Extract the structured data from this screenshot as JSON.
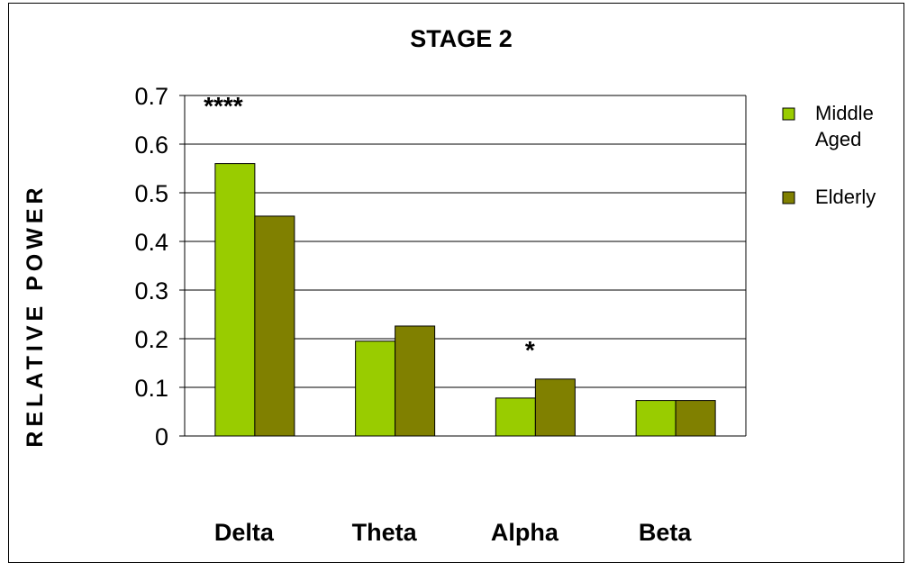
{
  "chart_data": {
    "type": "bar",
    "title": "STAGE 2",
    "xlabel": "",
    "ylabel": "RELATIVE POWER",
    "categories": [
      "Delta",
      "Theta",
      "Alpha",
      "Beta"
    ],
    "series": [
      {
        "name": "Middle Aged",
        "values": [
          0.56,
          0.195,
          0.078,
          0.073
        ],
        "color": "#99cc00"
      },
      {
        "name": "Elderly",
        "values": [
          0.452,
          0.226,
          0.117,
          0.073
        ],
        "color": "#808000"
      }
    ],
    "ylim": [
      0,
      0.7
    ],
    "yticks": [
      "0",
      "0.1",
      "0.2",
      "0.3",
      "0.4",
      "0.5",
      "0.6",
      "0.7"
    ],
    "annotations": [
      {
        "text": "****",
        "category": "Delta"
      },
      {
        "text": "*",
        "category": "Alpha"
      }
    ],
    "legend_labels": [
      [
        "Middle",
        "Aged"
      ],
      [
        "Elderly"
      ]
    ],
    "grid": true,
    "legend_position": "right"
  }
}
